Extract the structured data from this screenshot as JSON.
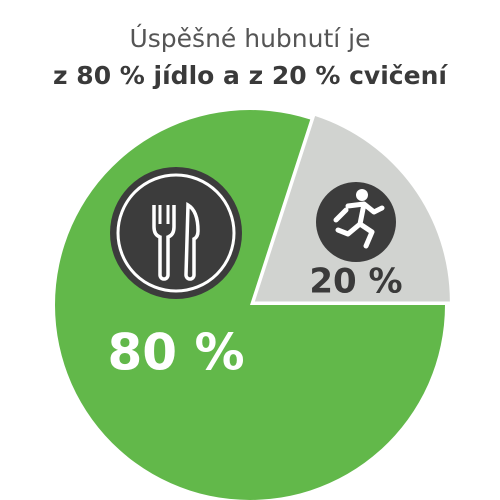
{
  "chart_data": {
    "type": "pie",
    "title": "Úspěšné hubnutí je",
    "subtitle": "z 80 % jídlo a z 20 % cvičení",
    "values": [
      80,
      20
    ],
    "value_labels": [
      "80 %",
      "20 %"
    ],
    "colors": [
      "#62b84a",
      "#d1d3d0"
    ]
  }
}
